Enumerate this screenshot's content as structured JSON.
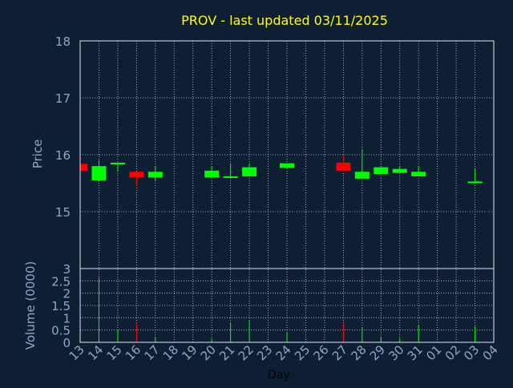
{
  "chart_data": {
    "type": "candlestick",
    "title": "PROV - last updated 03/11/2025",
    "price_axis": {
      "label": "Price",
      "ylim": [
        14.0,
        18.0
      ],
      "ticks": [
        15,
        16,
        17,
        18
      ]
    },
    "volume_axis": {
      "label": "Volume (0000)",
      "ylim": [
        0,
        3
      ],
      "ticks": [
        0,
        0.5,
        1,
        1.5,
        2,
        2.5,
        3
      ]
    },
    "xlabel": "Day",
    "categories": [
      "13",
      "14",
      "15",
      "16",
      "17",
      "18",
      "19",
      "20",
      "21",
      "22",
      "23",
      "24",
      "25",
      "26",
      "27",
      "28",
      "29",
      "30",
      "31",
      "01",
      "02",
      "03",
      "04"
    ],
    "x_tick_labels": [
      "13",
      "14",
      "15",
      "16",
      "17",
      "18",
      "19",
      "20",
      "21",
      "22",
      "23",
      "24",
      "25",
      "26",
      "27",
      "28",
      "29",
      "30",
      "31",
      "01",
      "02",
      "03",
      "04"
    ],
    "grid": true,
    "colors": {
      "up": "#00ff00",
      "down": "#ff0000",
      "background": "#0f1f33",
      "title": "#ffff00",
      "axis_text": "#8ea8c8",
      "grid": "#c8d0dc"
    },
    "candles": [
      {
        "day": "13",
        "open": 15.84,
        "high": 15.84,
        "low": 15.72,
        "close": 15.72,
        "volume": 0.0
      },
      {
        "day": "14",
        "open": 15.55,
        "high": 15.9,
        "low": 15.55,
        "close": 15.8,
        "volume": 2.62
      },
      {
        "day": "15",
        "open": 15.83,
        "high": 15.86,
        "low": 15.7,
        "close": 15.86,
        "volume": 0.5
      },
      {
        "day": "16",
        "open": 15.7,
        "high": 15.7,
        "low": 15.45,
        "close": 15.6,
        "volume": 0.75
      },
      {
        "day": "17",
        "open": 15.6,
        "high": 15.8,
        "low": 15.55,
        "close": 15.7,
        "volume": 0.2
      },
      {
        "day": "20",
        "open": 15.6,
        "high": 15.8,
        "low": 15.6,
        "close": 15.72,
        "volume": 0.15
      },
      {
        "day": "21",
        "open": 15.6,
        "high": 15.85,
        "low": 15.6,
        "close": 15.62,
        "volume": 0.78
      },
      {
        "day": "22",
        "open": 15.62,
        "high": 15.85,
        "low": 15.62,
        "close": 15.78,
        "volume": 0.9
      },
      {
        "day": "24",
        "open": 15.77,
        "high": 15.85,
        "low": 15.75,
        "close": 15.85,
        "volume": 0.4
      },
      {
        "day": "27",
        "open": 15.86,
        "high": 15.98,
        "low": 15.7,
        "close": 15.72,
        "volume": 0.78
      },
      {
        "day": "28",
        "open": 15.58,
        "high": 16.1,
        "low": 15.58,
        "close": 15.7,
        "volume": 0.62
      },
      {
        "day": "29",
        "open": 15.66,
        "high": 15.78,
        "low": 15.66,
        "close": 15.78,
        "volume": 0.2
      },
      {
        "day": "30",
        "open": 15.68,
        "high": 15.8,
        "low": 15.68,
        "close": 15.75,
        "volume": 0.15
      },
      {
        "day": "31",
        "open": 15.62,
        "high": 15.8,
        "low": 15.62,
        "close": 15.7,
        "volume": 0.7
      },
      {
        "day": "03",
        "open": 15.5,
        "high": 15.75,
        "low": 15.5,
        "close": 15.53,
        "volume": 0.65
      }
    ]
  }
}
